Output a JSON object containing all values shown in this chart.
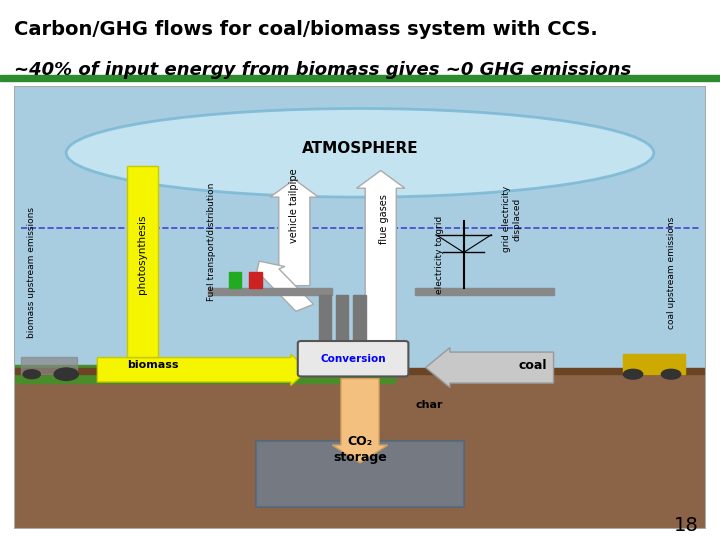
{
  "title_line1": "Carbon/GHG flows for coal/biomass system with CCS.",
  "title_line2": "~40% of input energy from biomass gives ~0 GHG emissions",
  "title_fontsize": 14,
  "title_bold": true,
  "background_color": "#ffffff",
  "diagram_bg": "#b8d4e8",
  "atmosphere_color": "#c8e8f4",
  "atmosphere_edge": "#7ab8d4",
  "ground_color": "#8B6347",
  "grass_color": "#4a8c2a",
  "title_bar_color": "#2e8b2e",
  "slide_number": "18",
  "page_number_fontsize": 14,
  "atmosphere_label": "ATMOSPHERE",
  "biomass_label": "biomass",
  "conversion_label": "Conversion",
  "coal_label": "coal",
  "char_label": "char",
  "co2_storage_label": "CO₂\nstorage",
  "rotated_labels": [
    "biomass upstream emissions",
    "photosynthesis",
    "Fuel transport/distribution",
    "vehicle tailpipe",
    "flue gases",
    "electricity to grid",
    "grid electricity\ndisplaced",
    "coal upstream emissions"
  ],
  "arrow_up_color": "#ffffff",
  "arrow_yellow_color": "#f5f500",
  "arrow_gray_color": "#c8c8c8",
  "arrow_peach_color": "#f4c080",
  "dashed_line_color": "#4444cc",
  "conversion_text_color": "#0000ff"
}
